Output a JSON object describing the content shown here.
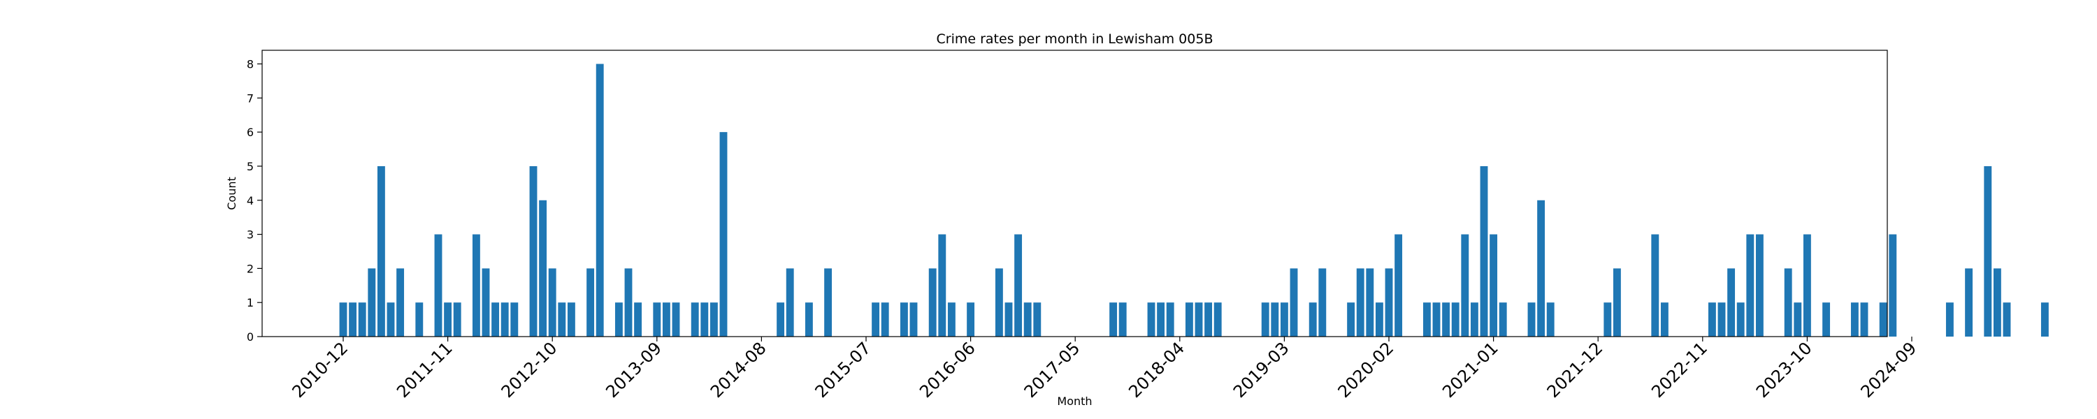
{
  "chart_data": {
    "type": "bar",
    "title": "Crime rates per month in Lewisham 005B",
    "xlabel": "Month",
    "ylabel": "Count",
    "ylim": [
      0,
      8.4
    ],
    "yticks": [
      0,
      1,
      2,
      3,
      4,
      5,
      6,
      7,
      8
    ],
    "xtick_labels": [
      "2010-12",
      "2011-11",
      "2012-10",
      "2013-09",
      "2014-08",
      "2015-07",
      "2016-06",
      "2017-05",
      "2018-04",
      "2019-03",
      "2020-02",
      "2021-01",
      "2021-12",
      "2022-11",
      "2023-10",
      "2024-09"
    ],
    "start_month": "2010-12",
    "values": [
      1,
      1,
      1,
      2,
      5,
      1,
      2,
      0,
      1,
      0,
      3,
      1,
      1,
      0,
      3,
      2,
      1,
      1,
      1,
      0,
      5,
      4,
      2,
      1,
      1,
      0,
      2,
      8,
      0,
      1,
      2,
      1,
      0,
      1,
      1,
      1,
      0,
      1,
      1,
      1,
      6,
      0,
      0,
      0,
      0,
      0,
      1,
      2,
      0,
      1,
      0,
      2,
      0,
      0,
      0,
      0,
      1,
      1,
      0,
      1,
      1,
      0,
      2,
      3,
      1,
      0,
      1,
      0,
      0,
      2,
      1,
      3,
      1,
      1,
      0,
      0,
      0,
      0,
      0,
      0,
      0,
      1,
      1,
      0,
      0,
      1,
      1,
      1,
      0,
      1,
      1,
      1,
      1,
      0,
      0,
      0,
      0,
      1,
      1,
      1,
      2,
      0,
      1,
      2,
      0,
      0,
      1,
      2,
      2,
      1,
      2,
      3,
      0,
      0,
      1,
      1,
      1,
      1,
      3,
      1,
      5,
      3,
      1,
      0,
      0,
      1,
      4,
      1,
      0,
      0,
      0,
      0,
      0,
      1,
      2,
      0,
      0,
      0,
      3,
      1,
      0,
      0,
      0,
      0,
      1,
      1,
      2,
      1,
      3,
      3,
      0,
      0,
      2,
      1,
      3,
      0,
      1,
      0,
      0,
      1,
      1,
      0,
      1,
      3,
      0,
      0,
      0,
      0,
      0,
      1,
      0,
      2,
      0,
      5,
      2,
      1,
      0,
      0,
      0,
      1
    ],
    "bar_color": "#1f77b4",
    "grid": false
  }
}
